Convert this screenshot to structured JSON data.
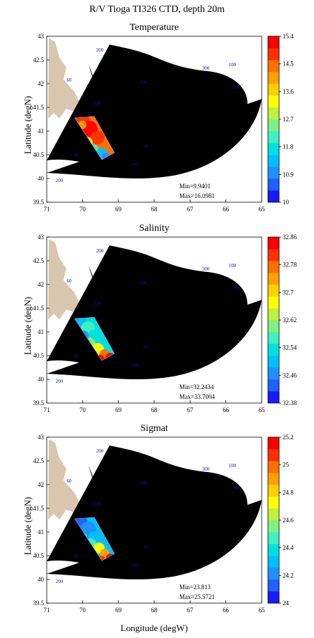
{
  "page_title": "R/V Tioga TI326 CTD, depth 20m",
  "x_axis_label": "Longitude (degW)",
  "y_axis_label": "Latitude (degN)",
  "x_ticks": [
    "71",
    "70",
    "69",
    "68",
    "67",
    "66",
    "65"
  ],
  "y_ticks": [
    "43",
    "42.5",
    "42",
    "41.5",
    "41",
    "40.5",
    "40",
    "39.5"
  ],
  "contour_labels": [
    "200",
    "60",
    "300",
    "100",
    "200",
    "100",
    "300",
    "60",
    "100",
    "200",
    "60"
  ],
  "panels": [
    {
      "title": "Temperature",
      "min_label": "Min=9.9401",
      "max_label": "Max=16.0981",
      "colorbar_ticks": [
        "15.4",
        "14.5",
        "13.6",
        "12.7",
        "11.8",
        "10.9",
        "10"
      ]
    },
    {
      "title": "Salinity",
      "min_label": "Min=32.2434",
      "max_label": "Max=33.7004",
      "colorbar_ticks": [
        "32.86",
        "32.78",
        "32.7",
        "32.62",
        "32.54",
        "32.46",
        "32.38"
      ]
    },
    {
      "title": "Sigmat",
      "min_label": "Min=23.813",
      "max_label": "Max=25.5721",
      "colorbar_ticks": [
        "25.2",
        "25",
        "24.8",
        "24.6",
        "24.4",
        "24.2",
        "24"
      ]
    }
  ],
  "colors": {
    "land": "#d8c7ae",
    "contour": "#9aa9e6",
    "contour_label": "#1010b0",
    "colorbar": [
      "#1a1aff",
      "#2060ff",
      "#1e90ff",
      "#00bfff",
      "#00e0e0",
      "#40f0c0",
      "#80f080",
      "#c0f040",
      "#ffff00",
      "#ffd000",
      "#ffa000",
      "#ff7000",
      "#ff3000",
      "#ff0000"
    ]
  }
}
